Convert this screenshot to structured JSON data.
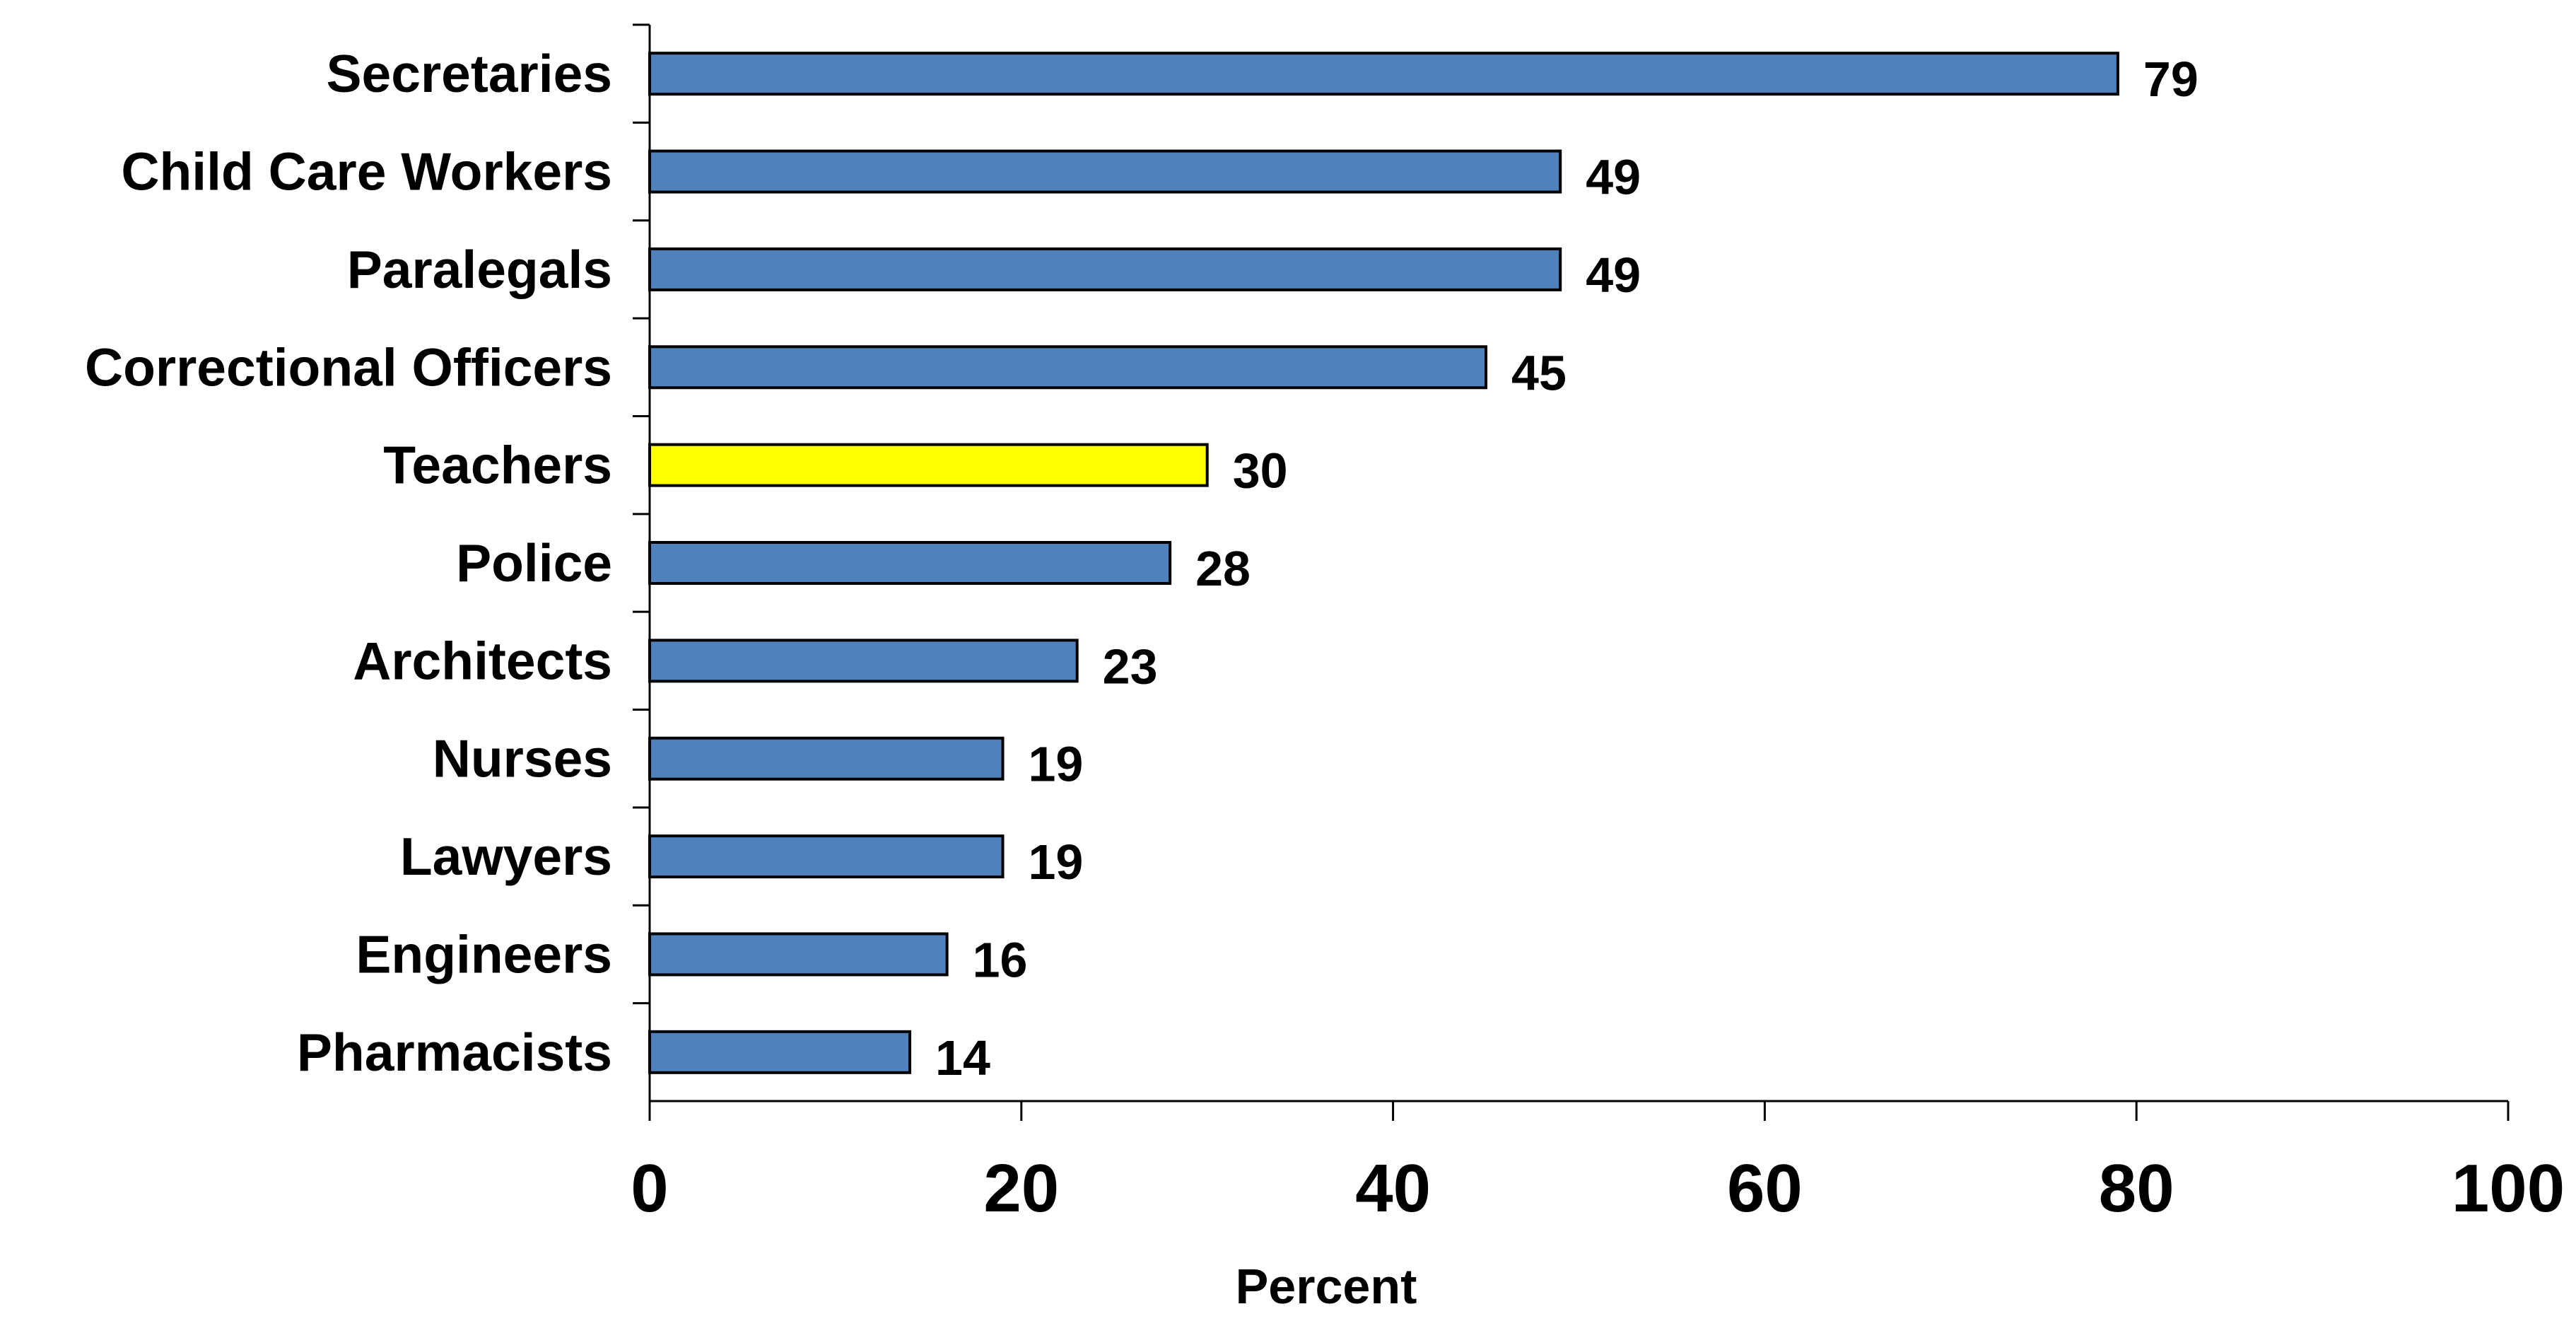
{
  "chart_data": {
    "type": "bar",
    "orientation": "horizontal",
    "categories": [
      "Secretaries",
      "Child Care Workers",
      "Paralegals",
      "Correctional Officers",
      "Teachers",
      "Police",
      "Architects",
      "Nurses",
      "Lawyers",
      "Engineers",
      "Pharmacists"
    ],
    "values": [
      79,
      49,
      49,
      45,
      30,
      28,
      23,
      19,
      19,
      16,
      14
    ],
    "data_labels": [
      "79",
      "49",
      "49",
      "45",
      "30",
      "28",
      "23",
      "19",
      "19",
      "16",
      "14"
    ],
    "highlight_category": "Teachers",
    "xlabel": "Percent",
    "ylabel": "",
    "xlim": [
      0,
      100
    ],
    "xticks": [
      0,
      20,
      40,
      60,
      80,
      100
    ],
    "xtick_labels": [
      "0",
      "20",
      "40",
      "60",
      "80",
      "100"
    ],
    "grid": false,
    "legend": "none",
    "colors": {
      "bar": "#4F81BD",
      "highlight": "#FFFF00",
      "bar_edge": "#000000",
      "axis": "#000000"
    }
  }
}
